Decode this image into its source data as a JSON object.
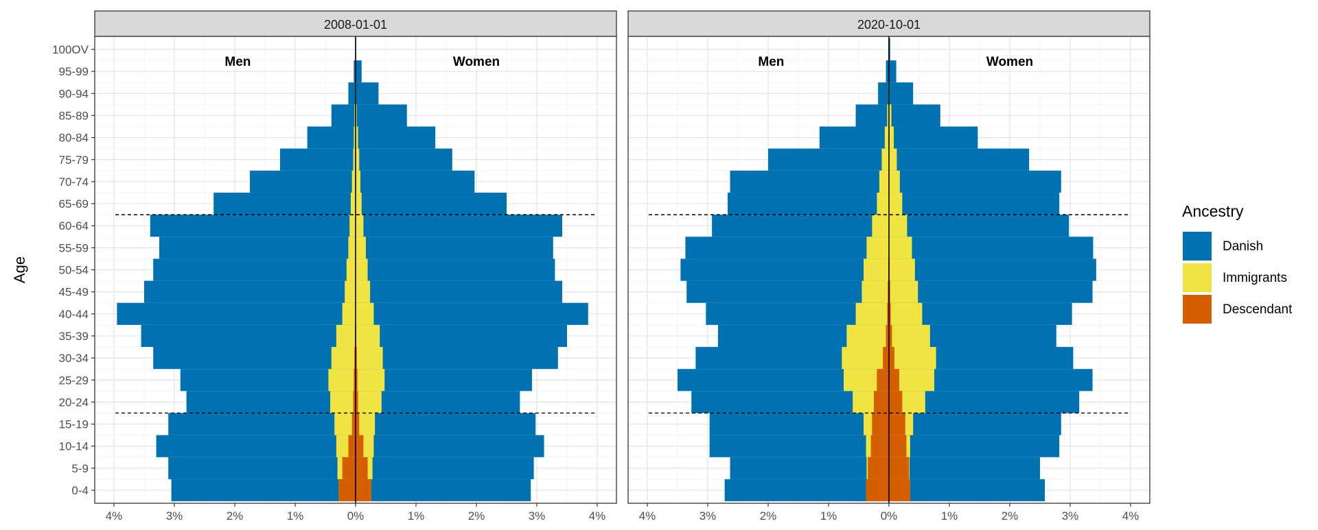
{
  "chart_data": {
    "type": "bar",
    "subtype": "population-pyramid",
    "ylabel": "Age",
    "xlim": [
      -4,
      4
    ],
    "x_ticks": [
      -4,
      -3,
      -2,
      -1,
      0,
      1,
      2,
      3,
      4
    ],
    "x_tick_labels": [
      "4%",
      "3%",
      "2%",
      "1%",
      "0%",
      "1%",
      "2%",
      "3%",
      "4%"
    ],
    "categories": [
      "0-4",
      "5-9",
      "10-14",
      "15-19",
      "20-24",
      "25-29",
      "30-34",
      "35-39",
      "40-44",
      "45-49",
      "50-54",
      "55-59",
      "60-64",
      "65-69",
      "70-74",
      "75-79",
      "80-84",
      "85-89",
      "90-94",
      "95-99",
      "100OV"
    ],
    "legend": {
      "title": "Ancestry",
      "position": "right",
      "items": [
        {
          "name": "Danish",
          "color": "#0072B2"
        },
        {
          "name": "Immigrants",
          "color": "#F0E442"
        },
        {
          "name": "Descendant",
          "color": "#D55E00"
        }
      ]
    },
    "grid": true,
    "reference_lines": {
      "style": "dashed",
      "between_age_groups": [
        [
          "15-19",
          "20-24"
        ],
        [
          "60-64",
          "65-69"
        ]
      ]
    },
    "sex_labels": {
      "left": "Men",
      "right": "Women"
    },
    "panels": [
      {
        "title": "2008-01-01",
        "series": [
          {
            "name": "Danish",
            "side": "Men",
            "values": [
              3.05,
              3.1,
              3.3,
              3.1,
              2.8,
              2.9,
              3.35,
              3.55,
              3.95,
              3.5,
              3.35,
              3.25,
              3.4,
              2.35,
              1.75,
              1.25,
              0.8,
              0.4,
              0.12,
              0.03,
              0.0
            ]
          },
          {
            "name": "Immigrants",
            "side": "Men",
            "values": [
              0.28,
              0.3,
              0.32,
              0.35,
              0.42,
              0.45,
              0.4,
              0.32,
              0.22,
              0.18,
              0.15,
              0.12,
              0.1,
              0.08,
              0.06,
              0.04,
              0.03,
              0.02,
              0.01,
              0.0,
              0.0
            ]
          },
          {
            "name": "Descendant",
            "side": "Men",
            "values": [
              0.28,
              0.22,
              0.12,
              0.06,
              0.04,
              0.03,
              0.02,
              0.01,
              0.0,
              0.0,
              0.0,
              0.0,
              0.0,
              0.0,
              0.0,
              0.0,
              0.0,
              0.0,
              0.0,
              0.0,
              0.0
            ]
          },
          {
            "name": "Danish",
            "side": "Women",
            "values": [
              2.9,
              2.95,
              3.12,
              2.98,
              2.72,
              2.92,
              3.35,
              3.5,
              3.85,
              3.42,
              3.3,
              3.27,
              3.42,
              2.5,
              1.97,
              1.6,
              1.32,
              0.85,
              0.38,
              0.1,
              0.01
            ]
          },
          {
            "name": "Immigrants",
            "side": "Women",
            "values": [
              0.26,
              0.28,
              0.3,
              0.32,
              0.43,
              0.48,
              0.45,
              0.4,
              0.3,
              0.24,
              0.2,
              0.17,
              0.13,
              0.1,
              0.08,
              0.06,
              0.04,
              0.02,
              0.01,
              0.0,
              0.0
            ]
          },
          {
            "name": "Descendant",
            "side": "Women",
            "values": [
              0.26,
              0.2,
              0.13,
              0.06,
              0.04,
              0.03,
              0.02,
              0.01,
              0.0,
              0.0,
              0.0,
              0.0,
              0.0,
              0.0,
              0.0,
              0.0,
              0.0,
              0.0,
              0.0,
              0.0,
              0.0
            ]
          }
        ]
      },
      {
        "title": "2020-10-01",
        "series": [
          {
            "name": "Danish",
            "side": "Men",
            "values": [
              2.72,
              2.63,
              2.97,
              2.97,
              3.27,
              3.5,
              3.2,
              2.83,
              3.03,
              3.35,
              3.45,
              3.37,
              2.93,
              2.67,
              2.63,
              2.0,
              1.15,
              0.55,
              0.18,
              0.05,
              0.01
            ]
          },
          {
            "name": "Immigrants",
            "side": "Men",
            "values": [
              0.38,
              0.37,
              0.38,
              0.42,
              0.6,
              0.75,
              0.78,
              0.7,
              0.55,
              0.45,
              0.42,
              0.37,
              0.28,
              0.2,
              0.16,
              0.12,
              0.07,
              0.03,
              0.01,
              0.0,
              0.0
            ]
          },
          {
            "name": "Descendant",
            "side": "Men",
            "values": [
              0.38,
              0.35,
              0.3,
              0.28,
              0.25,
              0.2,
              0.1,
              0.05,
              0.03,
              0.02,
              0.01,
              0.0,
              0.0,
              0.0,
              0.0,
              0.0,
              0.0,
              0.0,
              0.0,
              0.0,
              0.0
            ]
          },
          {
            "name": "Danish",
            "side": "Women",
            "values": [
              2.58,
              2.5,
              2.82,
              2.85,
              3.15,
              3.37,
              3.05,
              2.77,
              3.03,
              3.37,
              3.43,
              3.38,
              2.98,
              2.82,
              2.85,
              2.32,
              1.47,
              0.85,
              0.4,
              0.12,
              0.02
            ]
          },
          {
            "name": "Immigrants",
            "side": "Women",
            "values": [
              0.35,
              0.34,
              0.35,
              0.4,
              0.6,
              0.75,
              0.78,
              0.68,
              0.55,
              0.48,
              0.43,
              0.38,
              0.3,
              0.22,
              0.18,
              0.13,
              0.08,
              0.04,
              0.01,
              0.0,
              0.0
            ]
          },
          {
            "name": "Descendant",
            "side": "Women",
            "values": [
              0.35,
              0.33,
              0.29,
              0.27,
              0.22,
              0.17,
              0.09,
              0.05,
              0.03,
              0.02,
              0.01,
              0.0,
              0.0,
              0.0,
              0.0,
              0.0,
              0.0,
              0.0,
              0.0,
              0.0,
              0.0
            ]
          }
        ]
      }
    ]
  }
}
